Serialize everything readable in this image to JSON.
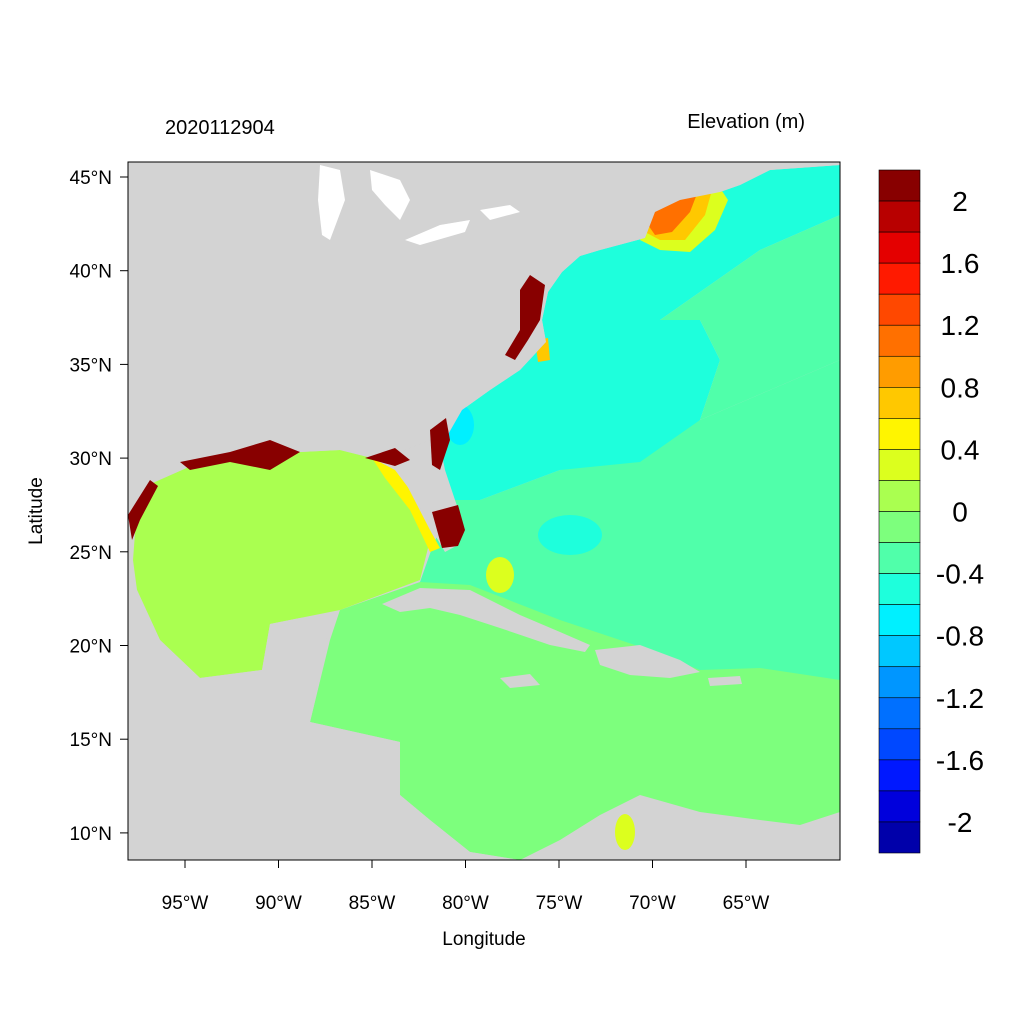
{
  "header": {
    "left_title": "2020112904",
    "right_title": "Elevation (m)"
  },
  "axes": {
    "xlabel": "Longitude",
    "ylabel": "Latitude",
    "xticks": [
      "95°W",
      "90°W",
      "85°W",
      "80°W",
      "75°W",
      "70°W",
      "65°W"
    ],
    "yticks": [
      "45°N",
      "40°N",
      "35°N",
      "30°N",
      "25°N",
      "20°N",
      "15°N",
      "10°N"
    ]
  },
  "chart_data": {
    "type": "heatmap",
    "title": "2020112904",
    "subtitle": "Elevation (m)",
    "xlabel": "Longitude",
    "ylabel": "Latitude",
    "xlim": [
      "98°W",
      "60°W"
    ],
    "ylim": [
      "8.6°N",
      "45.8°N"
    ],
    "land_color": "#d3d3d3",
    "colorbar": {
      "labels": [
        "2",
        "1.6",
        "1.2",
        "0.8",
        "0.4",
        "0",
        "-0.4",
        "-0.8",
        "-1.2",
        "-1.6",
        "-2"
      ],
      "colors": [
        "#880000",
        "#b80000",
        "#e40000",
        "#ff1a00",
        "#ff4800",
        "#ff7000",
        "#ff9c00",
        "#ffc800",
        "#fff500",
        "#dcff1e",
        "#aaff50",
        "#7dff7d",
        "#50ffaa",
        "#1effdc",
        "#00f0ff",
        "#00c8ff",
        "#0096ff",
        "#0070ff",
        "#0048ff",
        "#0018ff",
        "#0000dc",
        "#0000aa"
      ]
    },
    "regions": {
      "gulf_of_mexico": "#aaff50",
      "caribbean": "#7dff7d",
      "atlantic_south": "#50ffaa",
      "atlantic_north": "#1effdc",
      "gulf_of_maine": "#ff7000"
    }
  }
}
